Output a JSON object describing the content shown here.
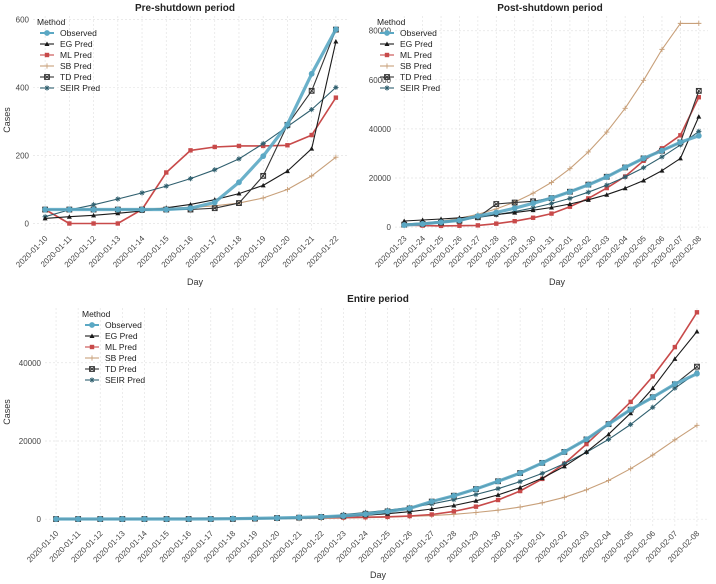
{
  "colors": {
    "Observed": "#5BA8C4",
    "EG Pred": "#1a1a1a",
    "ML Pred": "#C84A4A",
    "SB Pred": "#C8A07A",
    "TD Pred": "#333333",
    "SEIR Pred": "#2F5F6E"
  },
  "legend_title": "Method",
  "chart_data": [
    {
      "type": "line",
      "title": "Pre-shutdown period",
      "xlabel": "Day",
      "ylabel": "Cases",
      "x": [
        "2020-01-10",
        "2020-01-11",
        "2020-01-12",
        "2020-01-13",
        "2020-01-14",
        "2020-01-15",
        "2020-01-16",
        "2020-01-17",
        "2020-01-18",
        "2020-01-19",
        "2020-01-20",
        "2020-01-21",
        "2020-01-22"
      ],
      "yticks": [
        0,
        200,
        400,
        600
      ],
      "ylim": [
        -25,
        610
      ],
      "legend": "top-left",
      "series": [
        {
          "name": "Observed",
          "values": [
            41,
            41,
            41,
            41,
            41,
            41,
            45,
            62,
            121,
            198,
            291,
            440,
            571
          ]
        },
        {
          "name": "EG Pred",
          "values": [
            15,
            20,
            24,
            30,
            37,
            46,
            56,
            70,
            88,
            112,
            154,
            220,
            535
          ]
        },
        {
          "name": "ML Pred",
          "values": [
            41,
            0,
            0,
            0,
            41,
            150,
            215,
            225,
            228,
            228,
            230,
            260,
            370
          ]
        },
        {
          "name": "SB Pred",
          "values": [
            41,
            41,
            42,
            42,
            43,
            45,
            47,
            52,
            60,
            75,
            100,
            140,
            195
          ]
        },
        {
          "name": "TD Pred",
          "values": [
            41,
            41,
            41,
            41,
            41,
            41,
            41,
            45,
            60,
            140,
            290,
            390,
            570
          ]
        },
        {
          "name": "SEIR Pred",
          "values": [
            20,
            40,
            55,
            72,
            90,
            110,
            132,
            158,
            190,
            235,
            285,
            335,
            400
          ]
        }
      ]
    },
    {
      "type": "line",
      "title": "Post-shutdown period",
      "xlabel": "Day",
      "ylabel": "",
      "x": [
        "2020-01-23",
        "2020-01-24",
        "2020-01-25",
        "2020-01-26",
        "2020-01-27",
        "2020-01-28",
        "2020-01-29",
        "2020-01-30",
        "2020-01-31",
        "2020-02-01",
        "2020-02-02",
        "2020-02-03",
        "2020-02-04",
        "2020-02-05",
        "2020-02-06",
        "2020-02-07",
        "2020-02-08"
      ],
      "yticks": [
        0,
        20000,
        40000,
        60000,
        80000
      ],
      "ylim": [
        -2000,
        86000
      ],
      "legend": "top-left",
      "series": [
        {
          "name": "Observed",
          "values": [
            830,
            1287,
            1975,
            2744,
            4515,
            5974,
            7711,
            9692,
            11791,
            14380,
            17205,
            20438,
            24324,
            28018,
            31161,
            34546,
            37198
          ]
        },
        {
          "name": "EG Pred",
          "values": [
            2500,
            2900,
            3300,
            3800,
            4400,
            5100,
            5900,
            6900,
            8000,
            9400,
            11100,
            13200,
            15800,
            19000,
            23000,
            28000,
            45000
          ]
        },
        {
          "name": "ML Pred",
          "values": [
            800,
            600,
            500,
            550,
            700,
            1400,
            2400,
            3800,
            5500,
            8300,
            11700,
            15900,
            20600,
            27000,
            32100,
            37400,
            52900
          ]
        },
        {
          "name": "SB Pred",
          "values": [
            900,
            1500,
            2400,
            3600,
            5200,
            7400,
            10200,
            13800,
            18200,
            23800,
            30600,
            38700,
            48400,
            59800,
            72400,
            83000,
            83000
          ]
        },
        {
          "name": "TD Pred",
          "values": [
            1000,
            1300,
            1800,
            2600,
            4000,
            9400,
            10000,
            10500,
            11800,
            14400,
            17300,
            20500,
            24300,
            28000,
            31100,
            34500,
            55500
          ]
        },
        {
          "name": "SEIR Pred",
          "values": [
            1200,
            1700,
            2300,
            3000,
            3900,
            5000,
            6300,
            7800,
            9600,
            11700,
            14200,
            17100,
            20400,
            24200,
            28600,
            33500,
            39000
          ]
        }
      ]
    },
    {
      "type": "line",
      "title": "Entire period",
      "xlabel": "Day",
      "ylabel": "Cases",
      "x": [
        "2020-01-10",
        "2020-01-11",
        "2020-01-12",
        "2020-01-13",
        "2020-01-14",
        "2020-01-15",
        "2020-01-16",
        "2020-01-17",
        "2020-01-18",
        "2020-01-19",
        "2020-01-20",
        "2020-01-21",
        "2020-01-22",
        "2020-01-23",
        "2020-01-24",
        "2020-01-25",
        "2020-01-26",
        "2020-01-27",
        "2020-01-28",
        "2020-01-29",
        "2020-01-30",
        "2020-01-31",
        "2020-02-01",
        "2020-02-02",
        "2020-02-03",
        "2020-02-04",
        "2020-02-05",
        "2020-02-06",
        "2020-02-07",
        "2020-02-08"
      ],
      "yticks": [
        0,
        20000,
        40000
      ],
      "ylim": [
        -2000,
        54000
      ],
      "legend": "top-left",
      "series": [
        {
          "name": "Observed",
          "values": [
            41,
            41,
            41,
            41,
            41,
            41,
            45,
            62,
            121,
            198,
            291,
            440,
            571,
            830,
            1287,
            1975,
            2744,
            4515,
            5974,
            7711,
            9692,
            11791,
            14380,
            17205,
            20438,
            24324,
            28018,
            31161,
            34546,
            37198
          ]
        },
        {
          "name": "EG Pred",
          "values": [
            15,
            20,
            24,
            30,
            37,
            46,
            56,
            70,
            88,
            112,
            154,
            220,
            535,
            700,
            1000,
            1400,
            1900,
            2600,
            3500,
            4700,
            6200,
            8100,
            10500,
            13500,
            17200,
            21700,
            27100,
            33500,
            41000,
            48000
          ]
        },
        {
          "name": "ML Pred",
          "values": [
            41,
            0,
            0,
            0,
            41,
            150,
            215,
            225,
            228,
            228,
            230,
            260,
            370,
            400,
            500,
            600,
            800,
            1200,
            2000,
            3200,
            4900,
            7200,
            10300,
            14200,
            19200,
            24500,
            30000,
            36500,
            44000,
            52900
          ]
        },
        {
          "name": "SB Pred",
          "values": [
            41,
            41,
            42,
            42,
            43,
            45,
            47,
            52,
            60,
            75,
            100,
            140,
            195,
            270,
            370,
            500,
            680,
            920,
            1250,
            1700,
            2300,
            3100,
            4200,
            5600,
            7500,
            9900,
            12900,
            16400,
            20300,
            24000
          ]
        },
        {
          "name": "TD Pred",
          "values": [
            41,
            41,
            41,
            41,
            41,
            41,
            41,
            45,
            60,
            140,
            290,
            390,
            570,
            830,
            1290,
            1980,
            2750,
            4500,
            6000,
            7700,
            9700,
            11800,
            14400,
            17200,
            20400,
            24300,
            28000,
            31200,
            34500,
            39000
          ]
        },
        {
          "name": "SEIR Pred",
          "values": [
            20,
            40,
            55,
            72,
            90,
            110,
            132,
            158,
            190,
            235,
            285,
            335,
            400,
            1200,
            1700,
            2300,
            3000,
            3900,
            5000,
            6300,
            7800,
            9600,
            11700,
            14200,
            17100,
            20400,
            24200,
            28600,
            33500,
            37500
          ]
        }
      ]
    }
  ]
}
